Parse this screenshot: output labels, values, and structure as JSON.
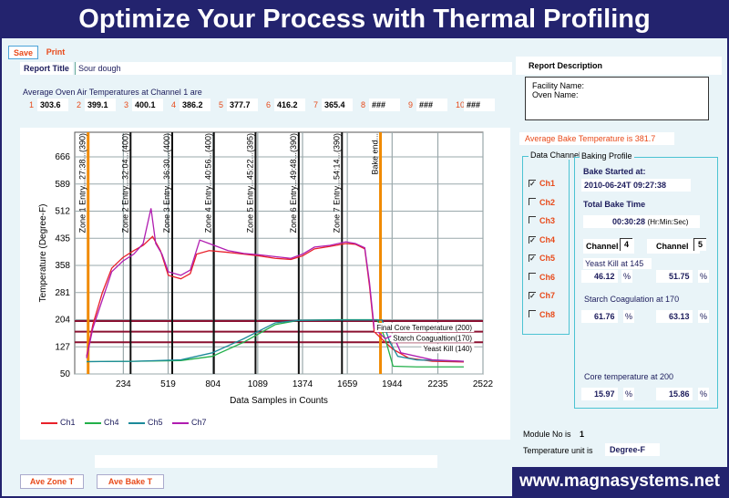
{
  "banner": {
    "title": "Optimize Your Process with Thermal Profiling"
  },
  "toolbar": {
    "save": "Save",
    "print": "Print"
  },
  "report": {
    "title_label": "Report Title",
    "title_value": "Sour dough",
    "avg_label": "Average Oven Air Temperatures at Channel 1 are",
    "zones": [
      {
        "n": "1",
        "v": "303.6"
      },
      {
        "n": "2",
        "v": "399.1"
      },
      {
        "n": "3",
        "v": "400.1"
      },
      {
        "n": "4",
        "v": "386.2"
      },
      {
        "n": "5",
        "v": "377.7"
      },
      {
        "n": "6",
        "v": "416.2"
      },
      {
        "n": "7",
        "v": "365.4"
      },
      {
        "n": "8",
        "v": "###"
      },
      {
        "n": "9",
        "v": "###"
      },
      {
        "n": "10",
        "v": "###"
      }
    ]
  },
  "description": {
    "label": "Report Description",
    "text1": "Facility Name:",
    "text2": "Oven Name:"
  },
  "avg_bake": "Average Bake Temperature is 381.7",
  "channels": {
    "legend": "Data Channels",
    "items": [
      {
        "label": "Ch1",
        "checked": true
      },
      {
        "label": "Ch2",
        "checked": false
      },
      {
        "label": "Ch3",
        "checked": false
      },
      {
        "label": "Ch4",
        "checked": true
      },
      {
        "label": "Ch5",
        "checked": true
      },
      {
        "label": "Ch6",
        "checked": false
      },
      {
        "label": "Ch7",
        "checked": true
      },
      {
        "label": "Ch8",
        "checked": false
      }
    ]
  },
  "profile": {
    "legend": "Baking Profile",
    "started_label": "Bake Started at:",
    "started": "2010-06-24T 09:27:38",
    "total_label": "Total Bake Time",
    "total": "00:30:28",
    "total_unit": "(Hr:Min:Sec)",
    "channel_label": "Channel",
    "channel_a": "4",
    "channel_b": "5",
    "yeast_label": "Yeast Kill at 145",
    "yeast_a": "46.12",
    "yeast_b": "51.75",
    "starch_label": "Starch Coagulation at 170",
    "starch_a": "61.76",
    "starch_b": "63.13",
    "core_label": "Core temperature at 200",
    "core_a": "15.97",
    "core_b": "15.86",
    "pct": "%"
  },
  "module": {
    "label": "Module No is",
    "value": "1"
  },
  "unit": {
    "label": "Temperature unit is",
    "value": "Degree-F"
  },
  "buttons": {
    "ave_zone": "Ave Zone T",
    "ave_bake": "Ave Bake T"
  },
  "website": "www.magnasystems.net",
  "chart_data": {
    "type": "line",
    "xlabel": "Data Samples in Counts",
    "ylabel": "Temperature (Degree-F)",
    "xticks": [
      234,
      519,
      804,
      1089,
      1374,
      1659,
      1944,
      2235,
      2522
    ],
    "yticks": [
      50,
      127,
      204,
      281,
      358,
      435,
      512,
      589,
      666
    ],
    "xlim": [
      0,
      2522
    ],
    "ylim": [
      50,
      666
    ],
    "grid": true,
    "legend_position": "bottom",
    "markers": [
      {
        "x": 10,
        "label": "Zone 1 Entry...27:38...(390)",
        "color": "#f08a00"
      },
      {
        "x": 280,
        "label": "Zone 2 Entry...32:04...(400)",
        "color": "#111"
      },
      {
        "x": 545,
        "label": "Zone 3 Entry...36:30...(400)",
        "color": "#111"
      },
      {
        "x": 810,
        "label": "Zone 4 Entry...40:56...(400)",
        "color": "#111"
      },
      {
        "x": 1075,
        "label": "Zone 5 Entry...45:22...(395)",
        "color": "#111"
      },
      {
        "x": 1350,
        "label": "Zone 6 Entry...49:48...(390)",
        "color": "#111"
      },
      {
        "x": 1625,
        "label": "Zone 7 Entry...54:14...(390)",
        "color": "#111"
      },
      {
        "x": 1870,
        "label": "Bake end...",
        "color": "#f08a00"
      }
    ],
    "thresholds": [
      {
        "y": 200,
        "label": "Final Core Temperature (200)"
      },
      {
        "y": 170,
        "label": "Starch Coagualtion(170)"
      },
      {
        "y": 140,
        "label": "Yeast Kill (140)"
      }
    ],
    "series": [
      {
        "name": "Ch1",
        "color": "#e8202a",
        "points": [
          [
            0,
            100
          ],
          [
            40,
            190
          ],
          [
            100,
            280
          ],
          [
            160,
            350
          ],
          [
            230,
            380
          ],
          [
            300,
            400
          ],
          [
            360,
            415
          ],
          [
            420,
            440
          ],
          [
            470,
            400
          ],
          [
            520,
            330
          ],
          [
            600,
            320
          ],
          [
            660,
            335
          ],
          [
            700,
            390
          ],
          [
            780,
            400
          ],
          [
            900,
            395
          ],
          [
            1000,
            390
          ],
          [
            1100,
            385
          ],
          [
            1200,
            378
          ],
          [
            1300,
            375
          ],
          [
            1374,
            385
          ],
          [
            1450,
            405
          ],
          [
            1550,
            412
          ],
          [
            1650,
            420
          ],
          [
            1710,
            418
          ],
          [
            1770,
            405
          ],
          [
            1800,
            300
          ],
          [
            1830,
            170
          ],
          [
            1900,
            140
          ],
          [
            1950,
            120
          ],
          [
            2050,
            95
          ],
          [
            2200,
            86
          ],
          [
            2400,
            84
          ]
        ]
      },
      {
        "name": "Ch4",
        "color": "#22b04a",
        "points": [
          [
            0,
            85
          ],
          [
            300,
            86
          ],
          [
            600,
            88
          ],
          [
            800,
            100
          ],
          [
            1000,
            140
          ],
          [
            1200,
            190
          ],
          [
            1350,
            202
          ],
          [
            1600,
            204
          ],
          [
            1850,
            204
          ],
          [
            1900,
            150
          ],
          [
            1950,
            72
          ],
          [
            2100,
            70
          ],
          [
            2400,
            70
          ]
        ]
      },
      {
        "name": "Ch5",
        "color": "#1c8a9a",
        "points": [
          [
            0,
            85
          ],
          [
            300,
            86
          ],
          [
            600,
            90
          ],
          [
            800,
            110
          ],
          [
            1000,
            150
          ],
          [
            1200,
            195
          ],
          [
            1350,
            202
          ],
          [
            1600,
            203
          ],
          [
            1880,
            203
          ],
          [
            1930,
            140
          ],
          [
            1980,
            100
          ],
          [
            2100,
            90
          ],
          [
            2400,
            86
          ]
        ]
      },
      {
        "name": "Ch7",
        "color": "#b01cb0",
        "points": [
          [
            0,
            95
          ],
          [
            40,
            180
          ],
          [
            100,
            260
          ],
          [
            160,
            340
          ],
          [
            230,
            370
          ],
          [
            300,
            390
          ],
          [
            360,
            420
          ],
          [
            410,
            520
          ],
          [
            440,
            420
          ],
          [
            480,
            390
          ],
          [
            520,
            340
          ],
          [
            600,
            330
          ],
          [
            660,
            345
          ],
          [
            720,
            430
          ],
          [
            780,
            420
          ],
          [
            900,
            400
          ],
          [
            1000,
            392
          ],
          [
            1100,
            388
          ],
          [
            1200,
            383
          ],
          [
            1300,
            378
          ],
          [
            1374,
            390
          ],
          [
            1450,
            410
          ],
          [
            1550,
            415
          ],
          [
            1650,
            425
          ],
          [
            1710,
            420
          ],
          [
            1770,
            408
          ],
          [
            1800,
            310
          ],
          [
            1830,
            180
          ],
          [
            1900,
            150
          ],
          [
            1950,
            160
          ],
          [
            2000,
            110
          ],
          [
            2200,
            90
          ],
          [
            2400,
            86
          ]
        ]
      }
    ]
  }
}
